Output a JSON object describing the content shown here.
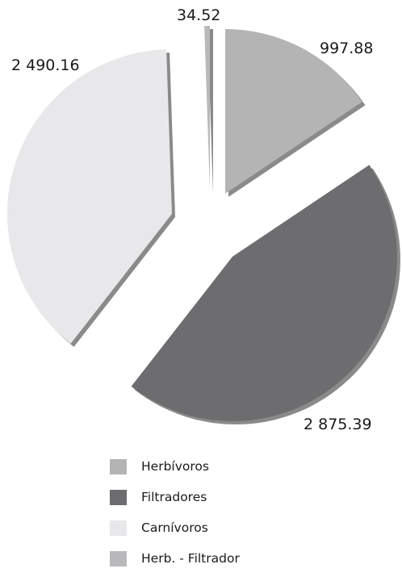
{
  "chart_data": {
    "type": "pie",
    "exploded": true,
    "categories": [
      "Herbívoros",
      "Filtradores",
      "Carnívoros",
      "Herb. - Filtrador"
    ],
    "values": [
      997.88,
      2875.39,
      2490.16,
      34.52
    ],
    "value_labels": [
      "997.88",
      "2 875.39",
      "2 490.16",
      "34.52"
    ],
    "colors": [
      "#b4b4b4",
      "#6d6d6f",
      "#e8e8ea",
      "#b9b9bb"
    ],
    "shadow_color": "#8a8a8a",
    "legend_position": "bottom",
    "title": ""
  }
}
